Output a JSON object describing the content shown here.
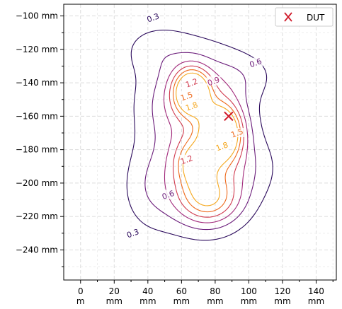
{
  "chart_data": {
    "type": "contour",
    "title": "",
    "xlabel": "",
    "ylabel": "",
    "x_unit": "mm",
    "y_unit": "mm",
    "xlim": [
      -10,
      152
    ],
    "ylim": [
      -258,
      -93
    ],
    "x_ticks": [
      0,
      20,
      40,
      60,
      80,
      100,
      120,
      140
    ],
    "x_tick_labels": [
      "0\nm",
      "20\nmm",
      "40\nmm",
      "60\nmm",
      "80\nmm",
      "100\nmm",
      "120\nmm",
      "140\nmm"
    ],
    "y_ticks": [
      -100,
      -120,
      -140,
      -160,
      -180,
      -200,
      -220,
      -240
    ],
    "y_tick_labels": [
      "−100 mm",
      "−120 mm",
      "−140 mm",
      "−160 mm",
      "−180 mm",
      "−200 mm",
      "−220 mm",
      "−240 mm"
    ],
    "grid": true,
    "legend_position": "top-right",
    "contour_levels": [
      0.3,
      0.6,
      0.9,
      1.2,
      1.5,
      1.8
    ],
    "contour_colors": [
      "#2b0a5c",
      "#6a1c7a",
      "#a0287a",
      "#d03a4e",
      "#ee6a1d",
      "#f5a81e"
    ],
    "contour_labels": [
      {
        "text": "0.3",
        "x": 43,
        "y": -101
      },
      {
        "text": "0.3",
        "x": 31,
        "y": -230
      },
      {
        "text": "0.6",
        "x": 104,
        "y": -128
      },
      {
        "text": "0.6",
        "x": 52,
        "y": -207
      },
      {
        "text": "0.9",
        "x": 79,
        "y": -139
      },
      {
        "text": "1.2",
        "x": 66,
        "y": -140
      },
      {
        "text": "1.5",
        "x": 63,
        "y": -148
      },
      {
        "text": "1.8",
        "x": 66,
        "y": -154
      },
      {
        "text": "1.2",
        "x": 63,
        "y": -186
      },
      {
        "text": "1.8",
        "x": 84,
        "y": -178
      },
      {
        "text": "1.5",
        "x": 93,
        "y": -170
      }
    ],
    "marker": {
      "name": "DUT",
      "x": 88,
      "y": -160,
      "color": "#d01c2c",
      "symbol": "x"
    },
    "legend": [
      {
        "label": "DUT",
        "color": "#d01c2c",
        "symbol": "x"
      }
    ]
  }
}
